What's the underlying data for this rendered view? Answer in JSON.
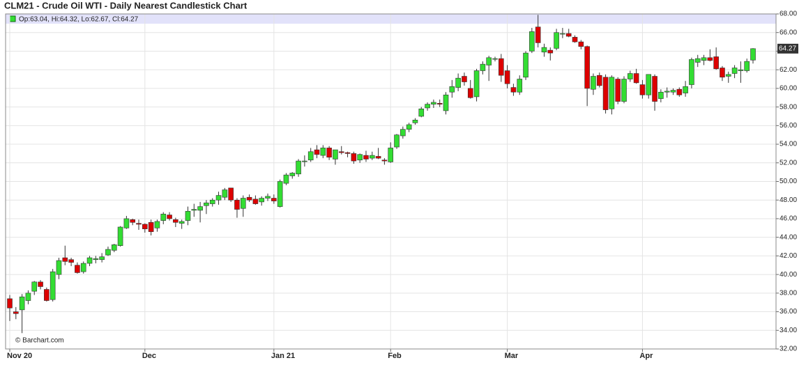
{
  "chart_data": {
    "type": "candlestick",
    "title": "CLM21 - Crude Oil WTI - Daily Nearest Candlestick Chart",
    "ohlc_label": "Op:63.04, Hi:64.32, Lo:62.67, Cl:64.27",
    "credit": "© Barchart.com",
    "last_price": 64.27,
    "up_color": "#33dd33",
    "down_color": "#dd0000",
    "grid": true,
    "categories": [
      "Nov 20",
      null,
      null,
      null,
      null,
      null,
      null,
      null,
      null,
      null,
      null,
      null,
      null,
      null,
      null,
      null,
      null,
      null,
      null,
      null,
      null,
      null,
      "Dec",
      null,
      null,
      null,
      null,
      null,
      null,
      null,
      null,
      null,
      null,
      null,
      null,
      null,
      null,
      null,
      null,
      null,
      null,
      null,
      null,
      "Jan 21",
      null,
      null,
      null,
      null,
      null,
      null,
      null,
      null,
      null,
      null,
      null,
      null,
      null,
      null,
      null,
      null,
      null,
      null,
      "Feb",
      null,
      null,
      null,
      null,
      null,
      null,
      null,
      null,
      null,
      null,
      null,
      null,
      null,
      null,
      null,
      null,
      null,
      null,
      "Mar",
      null,
      null,
      null,
      null,
      null,
      null,
      null,
      null,
      null,
      null,
      null,
      null,
      null,
      null,
      null,
      null,
      null,
      null,
      null,
      null,
      null,
      "Apr",
      null,
      null,
      null,
      null,
      null,
      null,
      null,
      null,
      null,
      null,
      null,
      null,
      null,
      null,
      null,
      null,
      null,
      null
    ],
    "open": [
      37.4,
      36.0,
      36.2,
      37.2,
      38.2,
      39.2,
      38.4,
      37.3,
      40.0,
      41.8,
      41.6,
      41.0,
      40.3,
      41.2,
      41.6,
      41.6,
      42.1,
      42.6,
      43.1,
      45.0,
      45.9,
      45.5,
      45.4,
      45.6,
      45.0,
      45.8,
      46.4,
      45.9,
      45.5,
      45.8,
      46.9,
      46.9,
      47.4,
      47.6,
      48.0,
      48.3,
      49.3,
      48.0,
      47.1,
      48.3,
      48.1,
      47.8,
      48.2,
      48.2,
      47.3,
      49.8,
      50.6,
      50.8,
      52.2,
      52.3,
      53.4,
      52.8,
      53.6,
      52.4,
      53.2,
      53.1,
      53.0,
      52.3,
      52.8,
      52.5,
      52.7,
      52.3,
      52.1,
      53.7,
      54.9,
      55.6,
      56.3,
      57.0,
      57.9,
      58.3,
      58.4,
      57.6,
      59.6,
      60.1,
      61.3,
      60.0,
      59.1,
      61.9,
      62.5,
      63.2,
      63.2,
      61.9,
      60.1,
      59.6,
      61.2,
      64.0,
      66.6,
      63.9,
      64.1,
      64.3,
      65.9,
      65.9,
      65.5,
      65.0,
      64.5,
      59.9,
      61.4,
      61.2,
      57.8,
      61.0,
      58.6,
      61.0,
      61.6,
      60.4,
      59.3,
      61.3,
      58.9,
      59.6,
      59.6,
      59.9,
      59.5,
      60.4,
      62.8,
      63.0,
      63.3,
      63.4,
      62.2,
      61.3,
      61.6,
      61.9,
      61.9,
      63.04
    ],
    "high": [
      37.8,
      36.5,
      37.9,
      38.3,
      39.3,
      39.4,
      38.6,
      40.6,
      41.8,
      43.1,
      41.8,
      41.3,
      41.4,
      42.0,
      42.0,
      42.3,
      43.0,
      43.3,
      45.2,
      46.3,
      46.0,
      45.9,
      45.5,
      45.9,
      45.9,
      46.7,
      46.7,
      46.1,
      45.9,
      47.3,
      47.6,
      47.8,
      48.0,
      48.2,
      48.9,
      49.3,
      49.3,
      48.2,
      48.5,
      48.6,
      48.5,
      48.4,
      48.7,
      48.6,
      50.2,
      50.9,
      51.0,
      52.4,
      52.8,
      53.6,
      53.9,
      53.9,
      53.8,
      53.4,
      53.8,
      53.2,
      53.2,
      53.0,
      53.3,
      53.2,
      53.6,
      52.5,
      54.2,
      55.1,
      55.9,
      56.3,
      56.8,
      58.0,
      58.5,
      58.8,
      58.8,
      59.6,
      60.9,
      61.6,
      61.7,
      60.9,
      62.1,
      62.9,
      63.5,
      63.4,
      63.7,
      62.5,
      60.5,
      61.4,
      64.0,
      66.5,
      67.9,
      64.8,
      64.4,
      66.4,
      66.5,
      66.4,
      65.7,
      65.2,
      64.6,
      61.6,
      61.7,
      61.5,
      61.4,
      61.2,
      61.3,
      61.9,
      62.1,
      60.9,
      61.5,
      61.5,
      59.9,
      60.1,
      60.0,
      60.1,
      60.8,
      63.3,
      63.6,
      63.6,
      64.2,
      64.4,
      62.4,
      61.8,
      62.5,
      62.9,
      63.2,
      64.32
    ],
    "low": [
      35.0,
      35.2,
      33.7,
      36.8,
      37.8,
      38.4,
      37.1,
      37.1,
      39.5,
      41.0,
      40.9,
      40.1,
      40.1,
      40.9,
      41.2,
      41.3,
      42.0,
      42.4,
      43.0,
      44.9,
      45.3,
      44.8,
      44.5,
      44.2,
      44.6,
      45.4,
      45.8,
      45.1,
      44.9,
      45.3,
      46.2,
      45.6,
      46.5,
      47.3,
      47.5,
      48.0,
      47.8,
      46.1,
      46.2,
      47.8,
      47.5,
      47.4,
      47.9,
      47.6,
      47.2,
      49.6,
      50.3,
      50.5,
      51.6,
      52.1,
      52.5,
      52.5,
      52.3,
      51.8,
      52.9,
      52.6,
      51.9,
      52.0,
      52.1,
      52.3,
      52.4,
      51.8,
      52.0,
      53.5,
      54.6,
      55.3,
      56.1,
      56.9,
      57.6,
      57.9,
      58.0,
      57.2,
      59.0,
      59.7,
      60.3,
      58.9,
      58.6,
      61.5,
      60.8,
      62.9,
      60.7,
      60.0,
      59.2,
      59.3,
      60.9,
      63.8,
      64.4,
      63.4,
      63.0,
      64.1,
      65.4,
      65.5,
      64.9,
      64.2,
      58.1,
      59.3,
      60.1,
      57.3,
      57.2,
      58.3,
      58.4,
      60.7,
      60.5,
      58.9,
      58.9,
      57.6,
      58.5,
      59.0,
      59.3,
      59.1,
      59.1,
      60.0,
      62.3,
      62.5,
      62.9,
      62.0,
      60.8,
      60.6,
      61.1,
      60.6,
      61.7,
      62.67
    ],
    "close": [
      36.4,
      35.8,
      37.6,
      38.0,
      39.2,
      38.7,
      37.2,
      40.3,
      41.5,
      41.4,
      41.3,
      40.2,
      41.2,
      41.8,
      41.7,
      41.9,
      42.7,
      43.2,
      45.1,
      46.0,
      45.6,
      45.4,
      44.9,
      44.6,
      45.7,
      46.5,
      46.0,
      45.6,
      45.7,
      46.8,
      47.0,
      47.3,
      47.7,
      48.0,
      48.5,
      49.1,
      48.0,
      47.0,
      48.2,
      48.0,
      47.6,
      48.2,
      48.4,
      47.9,
      50.0,
      50.7,
      50.9,
      52.2,
      52.2,
      53.2,
      52.9,
      53.6,
      52.6,
      53.4,
      53.1,
      53.0,
      52.2,
      52.9,
      52.4,
      52.8,
      52.5,
      52.2,
      53.6,
      55.0,
      55.6,
      56.1,
      56.6,
      57.8,
      58.3,
      58.5,
      58.3,
      59.3,
      60.2,
      61.1,
      60.7,
      59.0,
      61.9,
      62.6,
      63.3,
      63.2,
      61.4,
      60.5,
      59.6,
      61.0,
      63.8,
      66.1,
      64.9,
      64.4,
      63.8,
      66.0,
      65.9,
      65.6,
      65.0,
      64.5,
      60.0,
      61.3,
      60.3,
      57.7,
      61.2,
      58.6,
      61.0,
      61.6,
      60.6,
      59.3,
      61.5,
      58.6,
      59.6,
      59.7,
      59.8,
      59.3,
      60.2,
      63.1,
      63.2,
      63.3,
      63.0,
      62.1,
      61.2,
      61.5,
      62.2,
      62.0,
      62.9,
      64.27
    ],
    "ylim": [
      32,
      68
    ],
    "yticks": [
      {
        "value": 32,
        "label": "32.00"
      },
      {
        "value": 34,
        "label": "34.00"
      },
      {
        "value": 36,
        "label": "36.00"
      },
      {
        "value": 38,
        "label": "38.00"
      },
      {
        "value": 40,
        "label": "40.00"
      },
      {
        "value": 42,
        "label": "42.00"
      },
      {
        "value": 44,
        "label": "44.00"
      },
      {
        "value": 46,
        "label": "46.00"
      },
      {
        "value": 48,
        "label": "48.00"
      },
      {
        "value": 50,
        "label": "50.00"
      },
      {
        "value": 52,
        "label": "52.00"
      },
      {
        "value": 54,
        "label": "54.00"
      },
      {
        "value": 56,
        "label": "56.00"
      },
      {
        "value": 58,
        "label": "58.00"
      },
      {
        "value": 60,
        "label": "60.00"
      },
      {
        "value": 62,
        "label": "62.00"
      },
      {
        "value": 64,
        "label": "64.00"
      },
      {
        "value": 66,
        "label": "66.00"
      },
      {
        "value": 68,
        "label": "68.00"
      }
    ]
  }
}
